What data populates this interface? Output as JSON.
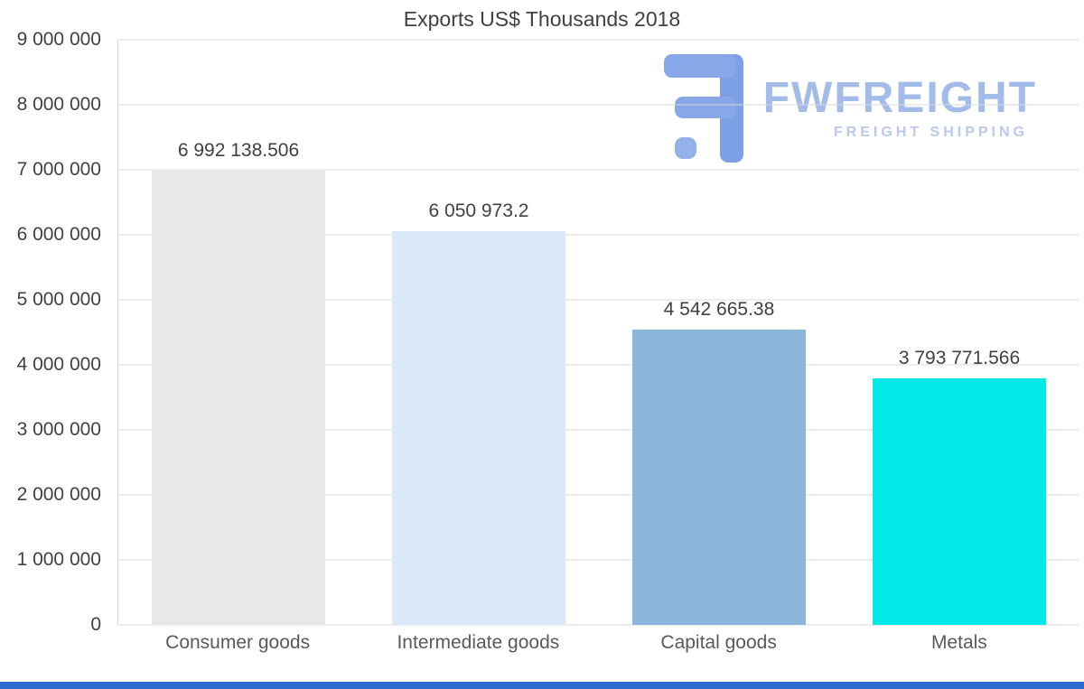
{
  "chart_data": {
    "type": "bar",
    "title": "Exports US$ Thousands 2018",
    "categories": [
      "Consumer goods",
      "Intermediate goods",
      "Capital goods",
      "Metals"
    ],
    "values": [
      6992138.506,
      6050973.2,
      4542665.38,
      3793771.566
    ],
    "value_labels": [
      "6 992 138.506",
      "6 050 973.2",
      "4 542 665.38",
      "3 793 771.566"
    ],
    "bar_colors": [
      "#e8e8e8",
      "#dbe9f9",
      "#8db6dc",
      "#00e8e8"
    ],
    "xlabel": "",
    "ylabel": "",
    "ylim": [
      0,
      9000000
    ],
    "y_tick_labels": [
      "9 000 000",
      "8 000 000",
      "7 000 000",
      "6 000 000",
      "5 000 000",
      "4 000 000",
      "3 000 000",
      "2 000 000",
      "1 000 000",
      "0"
    ],
    "grid": true,
    "legend": false
  },
  "logo": {
    "brand": "FWFREIGHT",
    "tagline": "FREIGHT SHIPPING",
    "brand_color": "#a3bbe9",
    "icon_color": "#7d9fe6"
  },
  "colors": {
    "gridline": "#d9d9d9",
    "axis_text": "#404040",
    "footer_accent": "#2e6bd0"
  }
}
